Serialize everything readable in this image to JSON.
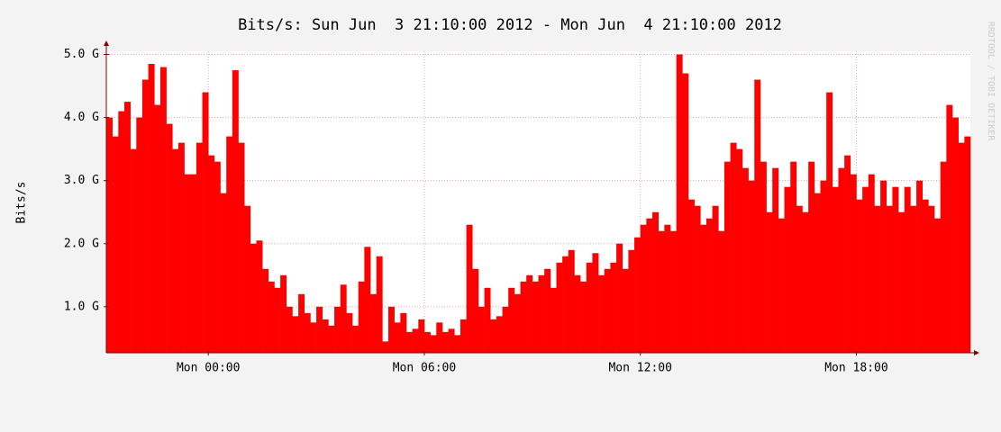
{
  "chart_data": {
    "type": "area",
    "title": "Bits/s: Sun Jun  3 21:10:00 2012 - Mon Jun  4 21:10:00 2012",
    "ylabel": "Bits/s",
    "watermark": "RRDTOOL / TOBI OETIKER",
    "color": "#ff0000",
    "grid": true,
    "xlim": [
      0,
      144
    ],
    "xticks": [
      {
        "value": 17,
        "label": "Mon 00:00"
      },
      {
        "value": 53,
        "label": "Mon 06:00"
      },
      {
        "value": 89,
        "label": "Mon 12:00"
      },
      {
        "value": 125,
        "label": "Mon 18:00"
      }
    ],
    "ylim": [
      0.27,
      5.05
    ],
    "yticks": [
      {
        "value": 1,
        "label": "1.0 G"
      },
      {
        "value": 2,
        "label": "2.0 G"
      },
      {
        "value": 3,
        "label": "3.0 G"
      },
      {
        "value": 4,
        "label": "4.0 G"
      },
      {
        "value": 5,
        "label": "5.0 G"
      }
    ],
    "values": [
      4.0,
      3.7,
      4.1,
      4.25,
      3.5,
      4.0,
      4.6,
      4.85,
      4.2,
      4.8,
      3.9,
      3.5,
      3.6,
      3.1,
      3.1,
      3.6,
      4.4,
      3.4,
      3.3,
      2.8,
      3.7,
      4.75,
      3.6,
      2.6,
      2.0,
      2.05,
      1.6,
      1.4,
      1.3,
      1.5,
      1.0,
      0.85,
      1.2,
      0.9,
      0.75,
      1.0,
      0.8,
      0.7,
      1.0,
      1.35,
      0.9,
      0.7,
      1.4,
      1.95,
      1.2,
      1.8,
      0.45,
      1.0,
      0.75,
      0.9,
      0.6,
      0.65,
      0.8,
      0.6,
      0.55,
      0.75,
      0.6,
      0.65,
      0.55,
      0.8,
      2.3,
      1.6,
      1.0,
      1.3,
      0.8,
      0.85,
      1.0,
      1.3,
      1.2,
      1.4,
      1.5,
      1.4,
      1.5,
      1.6,
      1.3,
      1.7,
      1.8,
      1.9,
      1.5,
      1.4,
      1.7,
      1.85,
      1.5,
      1.6,
      1.7,
      2.0,
      1.6,
      1.9,
      2.1,
      2.3,
      2.4,
      2.5,
      2.2,
      2.3,
      2.2,
      5.0,
      4.7,
      2.7,
      2.6,
      2.3,
      2.4,
      2.6,
      2.2,
      3.3,
      3.6,
      3.5,
      3.2,
      3.0,
      4.6,
      3.3,
      2.5,
      3.2,
      2.4,
      2.9,
      3.3,
      2.6,
      2.5,
      3.3,
      2.8,
      3.0,
      4.4,
      2.9,
      3.2,
      3.4,
      3.1,
      2.7,
      2.9,
      3.1,
      2.6,
      3.0,
      2.6,
      2.9,
      2.5,
      2.9,
      2.6,
      3.0,
      2.7,
      2.6,
      2.4,
      3.3,
      4.2,
      4.0,
      3.6,
      3.7
    ]
  }
}
